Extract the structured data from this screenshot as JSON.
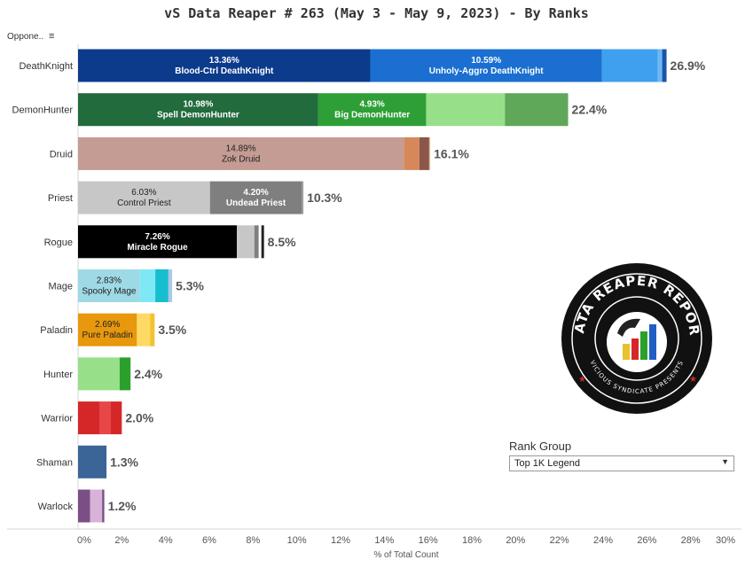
{
  "title": "vS Data Reaper #  263 (May 3 - May 9, 2023) - By Ranks",
  "sort_header": "Oppone..",
  "sort_icon": "sort-descending-icon",
  "rank_group": {
    "title": "Rank Group",
    "selected": "Top 1K Legend"
  },
  "logo": {
    "text_top": "DATA REAPER REPORT",
    "text_bottom": "VICIOUS SYNDICATE PRESENTS"
  },
  "chart_data": {
    "type": "bar",
    "orientation": "horizontal",
    "stacked": true,
    "title": "vS Data Reaper #  263 (May 3 - May 9, 2023) - By Ranks",
    "xlabel": "% of Total Count",
    "ylabel": "Oppone..",
    "xlim": [
      0,
      30
    ],
    "x_ticks": [
      "0%",
      "2%",
      "4%",
      "6%",
      "8%",
      "10%",
      "12%",
      "14%",
      "16%",
      "18%",
      "20%",
      "22%",
      "24%",
      "26%",
      "28%",
      "30%"
    ],
    "grid": false,
    "categories": [
      {
        "name": "DeathKnight",
        "total": "26.9%",
        "segments": [
          {
            "value": 13.36,
            "color": "#0c3b8c",
            "pct": "13.36%",
            "label": "Blood-Ctrl DeathKnight",
            "text_color": "#ffffff",
            "bold": true
          },
          {
            "value": 10.59,
            "color": "#1a6fd1",
            "pct": "10.59%",
            "label": "Unholy-Aggro DeathKnight",
            "text_color": "#ffffff",
            "bold": true
          },
          {
            "value": 2.55,
            "color": "#3ea0ee",
            "pct": "",
            "label": ""
          },
          {
            "value": 0.2,
            "color": "#6cb8f2",
            "pct": "",
            "label": ""
          },
          {
            "value": 0.2,
            "color": "#1a54a8",
            "pct": "",
            "label": ""
          }
        ]
      },
      {
        "name": "DemonHunter",
        "total": "22.4%",
        "segments": [
          {
            "value": 10.98,
            "color": "#226b3c",
            "pct": "10.98%",
            "label": "Spell DemonHunter",
            "text_color": "#ffffff",
            "bold": true
          },
          {
            "value": 4.93,
            "color": "#2e9f36",
            "pct": "4.93%",
            "label": "Big DemonHunter",
            "text_color": "#ffffff",
            "bold": true
          },
          {
            "value": 3.6,
            "color": "#98df8a",
            "pct": "",
            "label": ""
          },
          {
            "value": 2.89,
            "color": "#5fa85a",
            "pct": "",
            "label": ""
          }
        ]
      },
      {
        "name": "Druid",
        "total": "16.1%",
        "segments": [
          {
            "value": 14.89,
            "color": "#c49c94",
            "pct": "14.89%",
            "label": "Zok Druid",
            "text_color": "#222222",
            "bold": false
          },
          {
            "value": 0.71,
            "color": "#d6885b",
            "pct": "",
            "label": ""
          },
          {
            "value": 0.45,
            "color": "#8c564b",
            "pct": "",
            "label": ""
          },
          {
            "value": 0.05,
            "color": "#e7bb9c",
            "pct": "",
            "label": ""
          }
        ]
      },
      {
        "name": "Priest",
        "total": "10.3%",
        "segments": [
          {
            "value": 6.03,
            "color": "#c7c7c7",
            "pct": "6.03%",
            "label": "Control Priest",
            "text_color": "#222222",
            "bold": false
          },
          {
            "value": 4.2,
            "color": "#7f7f7f",
            "pct": "4.20%",
            "label": "Undead Priest",
            "text_color": "#ffffff",
            "bold": true
          },
          {
            "value": 0.07,
            "color": "#999999",
            "pct": "",
            "label": ""
          }
        ]
      },
      {
        "name": "Rogue",
        "total": "8.5%",
        "segments": [
          {
            "value": 7.26,
            "color": "#000000",
            "pct": "7.26%",
            "label": "Miracle Rogue",
            "text_color": "#ffffff",
            "bold": true
          },
          {
            "value": 0.8,
            "color": "#c7c7c7",
            "pct": "",
            "label": ""
          },
          {
            "value": 0.2,
            "color": "#7f7f7f",
            "pct": "",
            "label": ""
          },
          {
            "value": 0.12,
            "color": "#ffffff",
            "pct": "",
            "label": ""
          },
          {
            "value": 0.12,
            "color": "#222222",
            "pct": "",
            "label": ""
          }
        ]
      },
      {
        "name": "Mage",
        "total": "5.3%",
        "segments": [
          {
            "value": 2.83,
            "color": "#9edae5",
            "pct": "2.83%",
            "label": "Spooky Mage",
            "text_color": "#222222",
            "bold": false
          },
          {
            "value": 0.7,
            "color": "#7fe8f7",
            "pct": "",
            "label": ""
          },
          {
            "value": 0.6,
            "color": "#17becf",
            "pct": "",
            "label": ""
          },
          {
            "value": 0.17,
            "color": "#aec7e8",
            "pct": "",
            "label": ""
          }
        ]
      },
      {
        "name": "Paladin",
        "total": "3.5%",
        "segments": [
          {
            "value": 2.69,
            "color": "#e8980c",
            "pct": "2.69%",
            "label": "Pure Paladin",
            "text_color": "#222222",
            "bold": false
          },
          {
            "value": 0.6,
            "color": "#ffd966",
            "pct": "",
            "label": ""
          },
          {
            "value": 0.21,
            "color": "#f2c230",
            "pct": "",
            "label": ""
          }
        ]
      },
      {
        "name": "Hunter",
        "total": "2.4%",
        "segments": [
          {
            "value": 1.9,
            "color": "#98df8a",
            "pct": "",
            "label": ""
          },
          {
            "value": 0.5,
            "color": "#2ca02c",
            "pct": "",
            "label": ""
          }
        ]
      },
      {
        "name": "Warrior",
        "total": "2.0%",
        "segments": [
          {
            "value": 1.0,
            "color": "#d62728",
            "pct": "",
            "label": ""
          },
          {
            "value": 0.5,
            "color": "#e8474a",
            "pct": "",
            "label": ""
          },
          {
            "value": 0.5,
            "color": "#d62728",
            "pct": "",
            "label": ""
          }
        ]
      },
      {
        "name": "Shaman",
        "total": "1.3%",
        "segments": [
          {
            "value": 1.3,
            "color": "#3a6596",
            "pct": "",
            "label": ""
          }
        ]
      },
      {
        "name": "Warlock",
        "total": "1.2%",
        "segments": [
          {
            "value": 0.55,
            "color": "#7b4f85",
            "pct": "",
            "label": ""
          },
          {
            "value": 0.55,
            "color": "#d8b2d8",
            "pct": "",
            "label": ""
          },
          {
            "value": 0.1,
            "color": "#7b4f85",
            "pct": "",
            "label": ""
          }
        ]
      }
    ]
  }
}
